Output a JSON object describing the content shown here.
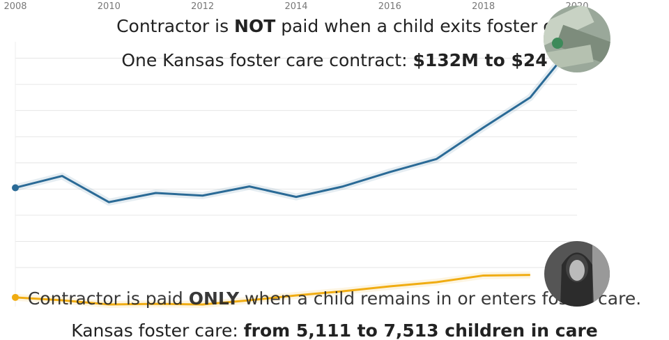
{
  "chart_data": {
    "type": "line",
    "headline_top": [
      "Contractor is ",
      "NOT",
      " paid when a child exits foster c"
    ],
    "subhead_top": [
      "One Kansas foster care contract: ",
      "$132M to $24"
    ],
    "headline_bottom": [
      "Contractor is paid ",
      "ONLY",
      " when a child remains in or enters foster care."
    ],
    "subhead_bottom": [
      "Kansas foster care: ",
      "from 5,111 to 7,513 children in care"
    ],
    "x": [
      2008,
      2009,
      2010,
      2011,
      2012,
      2013,
      2014,
      2015,
      2016,
      2017,
      2018,
      2019,
      2020
    ],
    "xlim": [
      2008,
      2020
    ],
    "xticks": [
      2008,
      2010,
      2012,
      2014,
      2016,
      2018,
      2020
    ],
    "ylim": [
      51,
      251
    ],
    "yticks": [
      71,
      91,
      111,
      131,
      151,
      171,
      191,
      211,
      231
    ],
    "y2lim": [
      5500,
      33500
    ],
    "grid": true,
    "series": [
      {
        "name": "Contract ($M)",
        "color": "#2a6a96",
        "values": [
          132,
          141,
          121,
          128,
          126,
          133,
          125,
          133,
          144,
          154,
          178,
          201,
          245
        ]
      },
      {
        "name": "Children in care",
        "color": "#f0ac12",
        "axis": "y2",
        "values": [
          5111,
          4800,
          4350,
          4420,
          4350,
          4800,
          5320,
          5770,
          6290,
          6740,
          7450,
          7513,
          null
        ]
      }
    ]
  }
}
